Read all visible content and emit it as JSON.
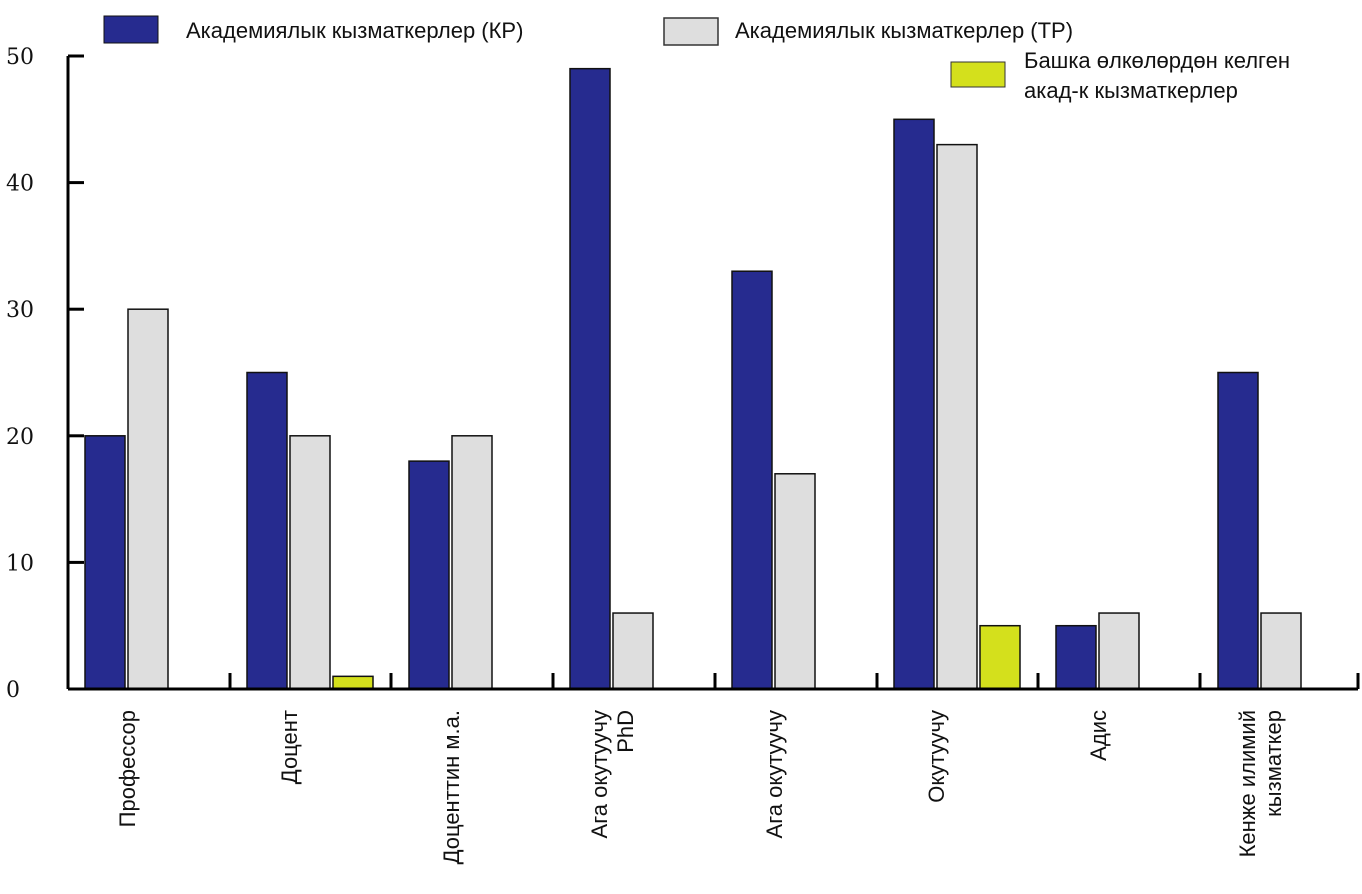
{
  "chart_data": {
    "type": "bar",
    "title": "",
    "xlabel": "",
    "ylabel": "",
    "ylim": [
      0,
      50
    ],
    "yticks": [
      "0",
      "10",
      "20",
      "30",
      "40",
      "50"
    ],
    "grid": false,
    "legend_position": "top",
    "categories": [
      [
        "Профессор"
      ],
      [
        "Доцент"
      ],
      [
        "Доценттин м.а."
      ],
      [
        "Ага окутуучу",
        "PhD"
      ],
      [
        "Ага окутуучу"
      ],
      [
        "Окутуучу"
      ],
      [
        "Адис"
      ],
      [
        "Кенже илимий",
        "кызматкер"
      ]
    ],
    "series": [
      {
        "name": "Академиялык кызматкерлер (КР)",
        "color": "#262b8f",
        "values": [
          20,
          25,
          18,
          49,
          33,
          45,
          5,
          25
        ]
      },
      {
        "name": "Академиялык кызматкерлер (ТР)",
        "color": "#dedede",
        "values": [
          30,
          20,
          20,
          6,
          17,
          43,
          6,
          6
        ]
      },
      {
        "name_lines": [
          "Башка өлкөлөрдөн келген",
          "акад-к кызматкерлер"
        ],
        "color": "#d4e01c",
        "values": [
          0,
          1,
          0,
          0,
          0,
          5,
          0,
          0
        ]
      }
    ]
  }
}
